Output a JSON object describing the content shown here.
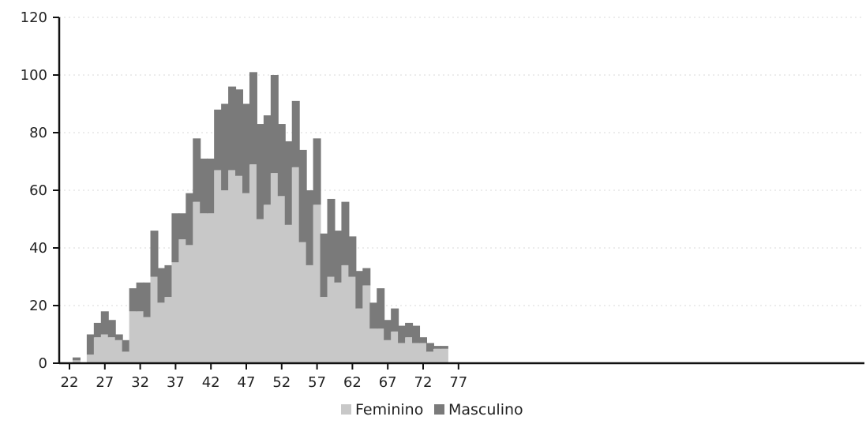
{
  "chart_data": {
    "type": "bar",
    "stacked": true,
    "x": [
      22,
      23,
      24,
      25,
      26,
      27,
      28,
      29,
      30,
      31,
      32,
      33,
      34,
      35,
      36,
      37,
      38,
      39,
      40,
      41,
      42,
      43,
      44,
      45,
      46,
      47,
      48,
      49,
      50,
      51,
      52,
      53,
      54,
      55,
      56,
      57,
      58,
      59,
      60,
      61,
      62,
      63,
      64,
      65,
      66,
      67,
      68,
      69,
      70,
      71,
      72,
      73,
      74,
      75,
      76,
      77
    ],
    "series": [
      {
        "name": "Feminino",
        "color": "#c8c8c8",
        "values": [
          0,
          1,
          0,
          3,
          9,
          10,
          9,
          8,
          4,
          18,
          18,
          16,
          30,
          21,
          23,
          35,
          43,
          41,
          56,
          52,
          52,
          67,
          60,
          67,
          65,
          59,
          69,
          50,
          55,
          66,
          58,
          48,
          68,
          42,
          34,
          55,
          23,
          30,
          28,
          34,
          30,
          19,
          27,
          12,
          12,
          8,
          11,
          7,
          9,
          7,
          7,
          4,
          5,
          5,
          0,
          0
        ]
      },
      {
        "name": "Masculino",
        "color": "#7a7a7a",
        "values": [
          0,
          1,
          0,
          7,
          5,
          8,
          6,
          2,
          4,
          8,
          10,
          12,
          16,
          12,
          11,
          17,
          9,
          18,
          22,
          19,
          19,
          21,
          30,
          29,
          30,
          31,
          32,
          33,
          31,
          34,
          25,
          29,
          23,
          32,
          26,
          23,
          22,
          27,
          18,
          22,
          14,
          13,
          6,
          9,
          14,
          7,
          8,
          6,
          5,
          6,
          2,
          3,
          1,
          1,
          0,
          0
        ]
      }
    ],
    "xticks": [
      22,
      27,
      32,
      37,
      42,
      47,
      52,
      57,
      62,
      67,
      72,
      77
    ],
    "yticks": [
      0,
      20,
      40,
      60,
      80,
      100,
      120
    ],
    "ylim": [
      0,
      120
    ],
    "xlim": [
      22,
      77
    ],
    "grid": true,
    "legend_position": "bottom-center"
  }
}
